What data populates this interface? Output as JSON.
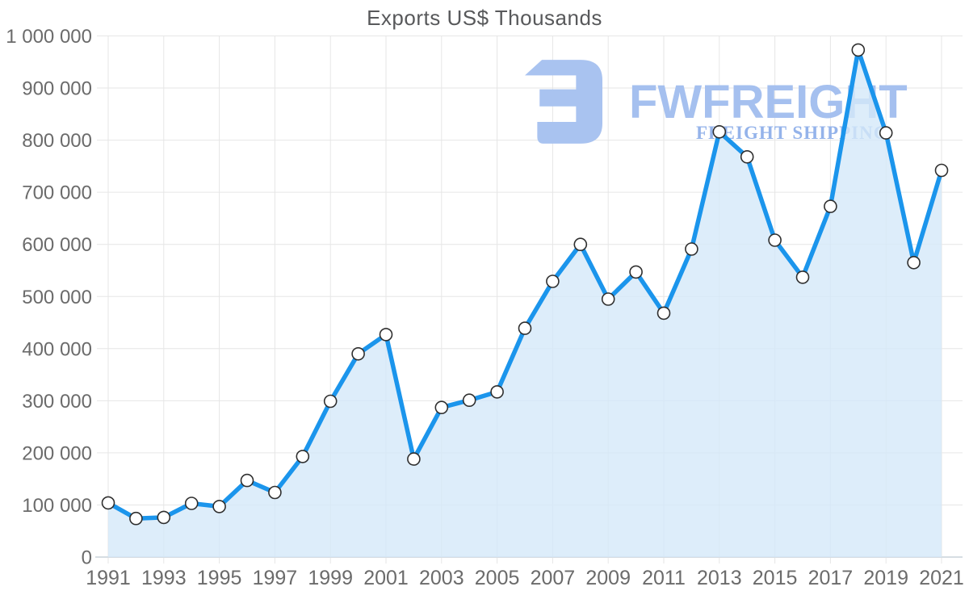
{
  "title": "Exports US$ Thousands",
  "watermark": {
    "brand": "FWFREIGHT",
    "tagline": "FREIGHT SHIPPING",
    "logo_icon": "fwfreight-logo",
    "color_brand": "#a5c0ef",
    "color_tagline": "#94b3ea",
    "color_logo": "#a9c3f0"
  },
  "chart_data": {
    "type": "area",
    "title": "Exports US$ Thousands",
    "xlabel": "",
    "ylabel": "",
    "x": [
      1991,
      1992,
      1993,
      1994,
      1995,
      1996,
      1997,
      1998,
      1999,
      2000,
      2001,
      2002,
      2003,
      2004,
      2005,
      2006,
      2007,
      2008,
      2009,
      2010,
      2011,
      2012,
      2013,
      2014,
      2015,
      2016,
      2017,
      2018,
      2019,
      2020,
      2021
    ],
    "values": [
      104000,
      74000,
      76000,
      103000,
      97000,
      147000,
      124000,
      193000,
      299000,
      390000,
      427000,
      188000,
      287000,
      301000,
      317000,
      439000,
      529000,
      600000,
      495000,
      547000,
      468000,
      591000,
      816000,
      768000,
      608000,
      537000,
      673000,
      973000,
      814000,
      565000,
      742000
    ],
    "ylim": [
      0,
      1000000
    ],
    "ytick_step": 100000,
    "ytick_labels": [
      "0",
      "100 000",
      "200 000",
      "300 000",
      "400 000",
      "500 000",
      "600 000",
      "700 000",
      "800 000",
      "900 000",
      "1 000 000"
    ],
    "xtick_labels": [
      "1991",
      "1993",
      "1995",
      "1997",
      "1999",
      "2001",
      "2003",
      "2005",
      "2007",
      "2009",
      "2011",
      "2013",
      "2015",
      "2017",
      "2019",
      "2021"
    ],
    "grid": true,
    "legend": "none",
    "marker": "circle",
    "colors": {
      "line": "#1b95ec",
      "fill": "#d5e8f9",
      "marker_fill": "#ffffff",
      "marker_stroke": "#2f2f2f",
      "grid": "#e6e6e6",
      "axis": "#d6dde3",
      "text": "#6b6b6b"
    }
  }
}
